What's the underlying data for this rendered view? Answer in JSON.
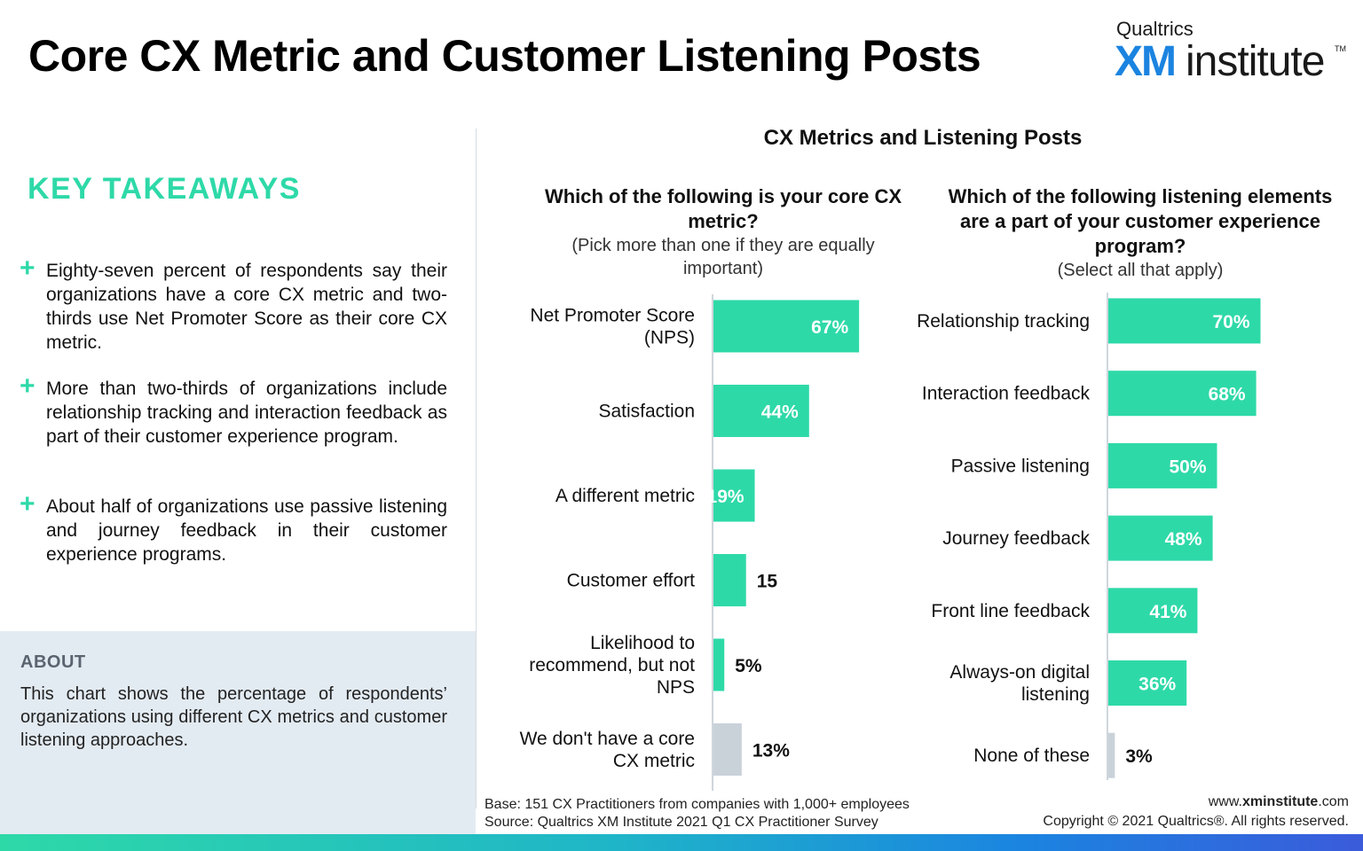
{
  "header": {
    "title": "Core CX Metric and Customer Listening Posts",
    "logo": {
      "top": "Qualtrics",
      "xm": "XM",
      "institute": "institute",
      "tm": "TM"
    }
  },
  "takeaways": {
    "heading": "KEY TAKEAWAYS",
    "items": [
      "Eighty-seven percent of respondents say their organizations have a core CX metric and two-thirds use Net Promoter Score as their core CX metric.",
      "More than two-thirds of organizations include relationship tracking and interaction feedback as part of their customer experience program.",
      "About half of organizations use passive listening and journey feedback in their customer experience programs."
    ],
    "bullet_symbol": "+"
  },
  "about": {
    "heading": "ABOUT",
    "body": "This chart shows the percentage of respondents’ organizations using different CX metrics and customer listening approaches."
  },
  "chart_title": "CX Metrics and Listening Posts",
  "colors": {
    "accent": "#2ed9a8",
    "gray_bar": "#c9d2d9",
    "brand_blue": "#1b84e0"
  },
  "chart_data": [
    {
      "type": "bar",
      "orientation": "horizontal",
      "title": "Which of the following is your core CX metric?",
      "subtitle": "(Pick more than one if they are equally important)",
      "unit": "%",
      "categories": [
        [
          "Net Promoter Score",
          "(NPS)"
        ],
        [
          "Satisfaction"
        ],
        [
          "A different metric"
        ],
        [
          "Customer effort"
        ],
        [
          "Likelihood to",
          "recommend, but not",
          "NPS"
        ],
        [
          "We don't have a core",
          "CX metric"
        ]
      ],
      "values": [
        67,
        44,
        19,
        15,
        5,
        13
      ],
      "value_labels": [
        "67%",
        "44%",
        "19%",
        "15",
        "5%",
        "13%"
      ],
      "highlight": [
        true,
        true,
        true,
        true,
        true,
        false
      ],
      "xlim": [
        0,
        100
      ]
    },
    {
      "type": "bar",
      "orientation": "horizontal",
      "title": "Which of the following listening elements are a part of your customer experience program?",
      "subtitle": "(Select all that apply)",
      "unit": "%",
      "categories": [
        [
          "Relationship tracking"
        ],
        [
          "Interaction feedback"
        ],
        [
          "Passive listening"
        ],
        [
          "Journey feedback"
        ],
        [
          "Front line feedback"
        ],
        [
          "Always-on digital",
          "listening"
        ],
        [
          "None of these"
        ]
      ],
      "values": [
        70,
        68,
        50,
        48,
        41,
        36,
        3
      ],
      "value_labels": [
        "70%",
        "68%",
        "50%",
        "48%",
        "41%",
        "36%",
        "3%"
      ],
      "highlight": [
        true,
        true,
        true,
        true,
        true,
        true,
        false
      ],
      "xlim": [
        0,
        100
      ]
    }
  ],
  "footer": {
    "base": "Base: 151 CX Practitioners from companies with 1,000+ employees",
    "source": "Source: Qualtrics XM Institute 2021 Q1 CX Practitioner Survey",
    "web_prefix": "www.",
    "web_bold": "xminstitute",
    "web_suffix": ".com",
    "copyright": "Copyright © 2021 Qualtrics®. All rights reserved."
  }
}
